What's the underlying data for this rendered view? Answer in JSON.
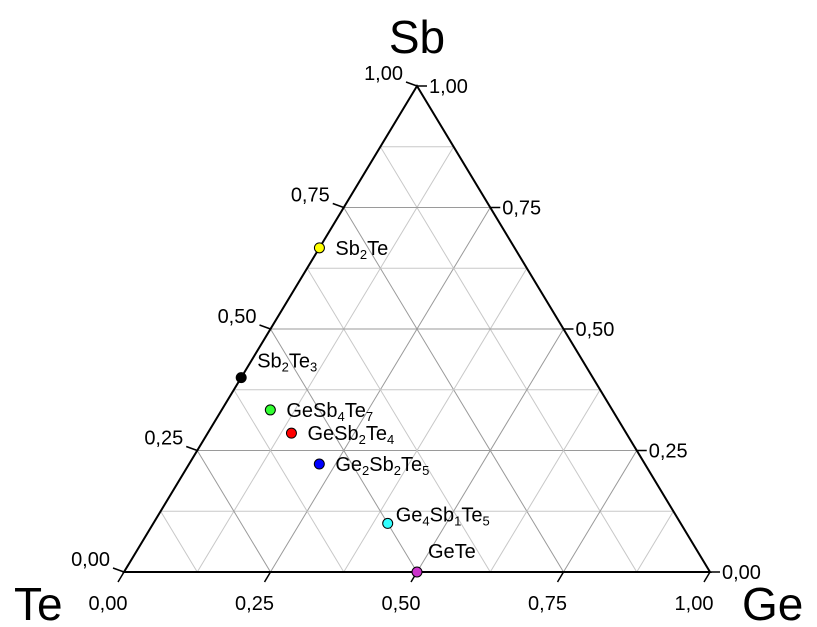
{
  "chart_data": {
    "type": "scatter",
    "subtype": "ternary",
    "vertices": {
      "top": "Sb",
      "left": "Te",
      "right": "Ge"
    },
    "ticks": [
      "0,00",
      "0,25",
      "0,50",
      "0,75",
      "1,00"
    ],
    "tick_values": [
      0,
      0.25,
      0.5,
      0.75,
      1
    ],
    "grid": true,
    "points": [
      {
        "label": "Sb2Te",
        "parts": [
          [
            "Sb",
            ""
          ],
          [
            "2",
            "sub"
          ],
          [
            "Te",
            ""
          ]
        ],
        "Ge": 0.0,
        "Sb": 0.667,
        "Te": 0.333,
        "color": "#ffff00"
      },
      {
        "label": "Sb2Te3",
        "parts": [
          [
            "Sb",
            ""
          ],
          [
            "2",
            "sub"
          ],
          [
            "Te",
            ""
          ],
          [
            "3",
            "sub"
          ]
        ],
        "Ge": 0.0,
        "Sb": 0.4,
        "Te": 0.6,
        "color": "#000000"
      },
      {
        "label": "GeSb4Te7",
        "parts": [
          [
            "GeSb",
            ""
          ],
          [
            "4",
            "sub"
          ],
          [
            "Te",
            ""
          ],
          [
            "7",
            "sub"
          ]
        ],
        "Ge": 0.0833,
        "Sb": 0.333,
        "Te": 0.5833,
        "color": "#33ff33"
      },
      {
        "label": "GeSb2Te4",
        "parts": [
          [
            "GeSb",
            ""
          ],
          [
            "2",
            "sub"
          ],
          [
            "Te",
            ""
          ],
          [
            "4",
            "sub"
          ]
        ],
        "Ge": 0.1429,
        "Sb": 0.2857,
        "Te": 0.5714,
        "color": "#ff0000"
      },
      {
        "label": "Ge2Sb2Te5",
        "parts": [
          [
            "Ge",
            ""
          ],
          [
            "2",
            "sub"
          ],
          [
            "Sb",
            ""
          ],
          [
            "2",
            "sub"
          ],
          [
            "Te",
            ""
          ],
          [
            "5",
            "sub"
          ]
        ],
        "Ge": 0.2222,
        "Sb": 0.2222,
        "Te": 0.5556,
        "color": "#0000ff"
      },
      {
        "label": "Ge4Sb1Te5",
        "parts": [
          [
            "Ge",
            ""
          ],
          [
            "4",
            "sub"
          ],
          [
            "Sb",
            ""
          ],
          [
            "1",
            "sub"
          ],
          [
            "Te",
            ""
          ],
          [
            "5",
            "sub"
          ]
        ],
        "Ge": 0.4,
        "Sb": 0.1,
        "Te": 0.5,
        "color": "#33ffff"
      },
      {
        "label": "GeTe",
        "parts": [
          [
            "GeTe",
            ""
          ]
        ],
        "Ge": 0.5,
        "Sb": 0.0,
        "Te": 0.5,
        "color": "#cc33cc"
      }
    ]
  }
}
